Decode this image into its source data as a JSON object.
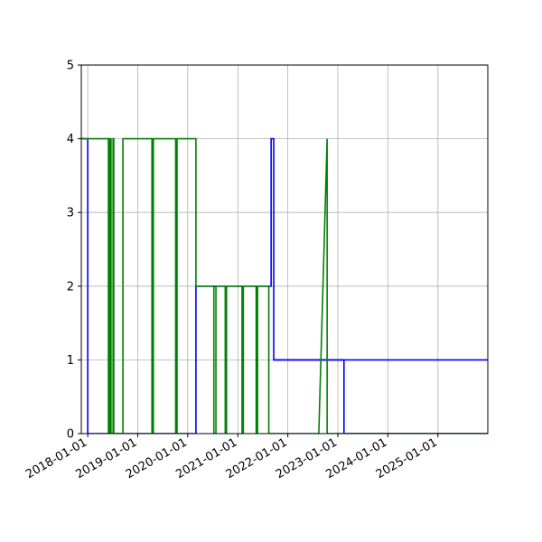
{
  "chart_data": {
    "type": "line",
    "title": "",
    "xlabel": "",
    "ylabel": "",
    "x_axis": "date",
    "xlim": [
      "2017-11-15",
      "2025-12-31"
    ],
    "ylim": [
      0,
      5
    ],
    "grid": true,
    "legend": "none",
    "x_ticks": [
      "2018-01-01",
      "2019-01-01",
      "2020-01-01",
      "2021-01-01",
      "2022-01-01",
      "2023-01-01",
      "2024-01-01",
      "2025-01-01"
    ],
    "y_ticks": [
      "0",
      "1",
      "2",
      "3",
      "4",
      "5"
    ],
    "series": [
      {
        "color": "#0000ff",
        "step": "post",
        "points": [
          [
            "2017-11-15",
            4
          ],
          [
            "2018-01-01",
            4
          ],
          [
            "2018-01-01",
            0
          ],
          [
            "2020-03-01",
            0
          ],
          [
            "2020-03-01",
            2
          ],
          [
            "2021-09-01",
            2
          ],
          [
            "2021-09-01",
            4
          ],
          [
            "2021-09-20",
            4
          ],
          [
            "2021-09-20",
            1
          ],
          [
            "2023-02-15",
            1
          ],
          [
            "2023-02-15",
            0
          ],
          [
            "2025-12-31",
            0
          ]
        ]
      },
      {
        "color": "#0000ff",
        "step": "post",
        "points": [
          [
            "2021-09-20",
            1
          ],
          [
            "2025-12-31",
            1
          ]
        ]
      },
      {
        "color": "#008000",
        "step": "none",
        "points": [
          [
            "2017-11-15",
            4
          ],
          [
            "2018-06-01",
            4
          ],
          [
            "2018-06-01",
            0
          ],
          [
            "2018-06-10",
            0
          ],
          [
            "2018-06-10",
            4
          ],
          [
            "2018-06-20",
            4
          ],
          [
            "2018-06-20",
            0
          ],
          [
            "2018-07-05",
            0
          ],
          [
            "2018-07-05",
            4
          ],
          [
            "2018-07-10",
            4
          ],
          [
            "2018-07-10",
            0
          ],
          [
            "2018-09-15",
            0
          ],
          [
            "2018-09-15",
            4
          ],
          [
            "2019-04-15",
            4
          ],
          [
            "2019-04-15",
            0
          ],
          [
            "2019-04-25",
            0
          ],
          [
            "2019-04-25",
            4
          ],
          [
            "2019-10-05",
            4
          ],
          [
            "2019-10-05",
            0
          ],
          [
            "2019-10-15",
            0
          ],
          [
            "2019-10-15",
            4
          ],
          [
            "2020-03-01",
            4
          ],
          [
            "2020-03-01",
            2
          ],
          [
            "2020-07-10",
            2
          ],
          [
            "2020-07-10",
            0
          ],
          [
            "2020-07-25",
            0
          ],
          [
            "2020-07-25",
            2
          ],
          [
            "2020-10-01",
            2
          ],
          [
            "2020-10-01",
            0
          ],
          [
            "2020-10-10",
            0
          ],
          [
            "2020-10-10",
            2
          ],
          [
            "2021-02-01",
            2
          ],
          [
            "2021-02-01",
            0
          ],
          [
            "2021-02-10",
            0
          ],
          [
            "2021-02-10",
            2
          ],
          [
            "2021-05-15",
            2
          ],
          [
            "2021-05-15",
            0
          ],
          [
            "2021-05-25",
            0
          ],
          [
            "2021-05-25",
            2
          ],
          [
            "2021-08-15",
            2
          ],
          [
            "2021-08-15",
            0
          ],
          [
            "2021-09-20",
            0
          ],
          [
            "2022-08-15",
            0
          ],
          [
            "2022-10-15",
            4
          ],
          [
            "2022-10-15",
            0
          ],
          [
            "2025-12-31",
            0
          ]
        ]
      }
    ]
  }
}
